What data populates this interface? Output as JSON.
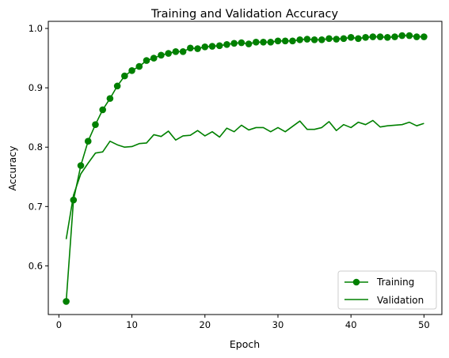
{
  "chart_data": {
    "type": "line",
    "title": "Training and Validation Accuracy",
    "xlabel": "Epoch",
    "ylabel": "Accuracy",
    "xlim": [
      -1.45,
      52.45
    ],
    "ylim": [
      0.518,
      1.012
    ],
    "xticks": [
      0,
      10,
      20,
      30,
      40,
      50
    ],
    "yticks": [
      0.6,
      0.7,
      0.8,
      0.9,
      1.0
    ],
    "grid": false,
    "legend_position": "bottom-right",
    "x": [
      1,
      2,
      3,
      4,
      5,
      6,
      7,
      8,
      9,
      10,
      11,
      12,
      13,
      14,
      15,
      16,
      17,
      18,
      19,
      20,
      21,
      22,
      23,
      24,
      25,
      26,
      27,
      28,
      29,
      30,
      31,
      32,
      33,
      34,
      35,
      36,
      37,
      38,
      39,
      40,
      41,
      42,
      43,
      44,
      45,
      46,
      47,
      48,
      49,
      50
    ],
    "series": [
      {
        "name": "Training",
        "color": "#008000",
        "marker": "circle",
        "values": [
          0.54,
          0.711,
          0.769,
          0.81,
          0.838,
          0.863,
          0.882,
          0.903,
          0.92,
          0.929,
          0.936,
          0.946,
          0.95,
          0.955,
          0.958,
          0.961,
          0.961,
          0.967,
          0.966,
          0.969,
          0.97,
          0.971,
          0.973,
          0.975,
          0.976,
          0.974,
          0.977,
          0.977,
          0.977,
          0.979,
          0.979,
          0.979,
          0.981,
          0.982,
          0.981,
          0.981,
          0.983,
          0.982,
          0.983,
          0.985,
          0.983,
          0.985,
          0.986,
          0.986,
          0.985,
          0.986,
          0.988,
          0.988,
          0.986,
          0.986
        ]
      },
      {
        "name": "Validation",
        "color": "#008000",
        "marker": "none",
        "values": [
          0.645,
          0.719,
          0.755,
          0.773,
          0.79,
          0.792,
          0.81,
          0.804,
          0.8,
          0.801,
          0.806,
          0.807,
          0.821,
          0.818,
          0.827,
          0.812,
          0.819,
          0.82,
          0.828,
          0.819,
          0.826,
          0.817,
          0.832,
          0.826,
          0.837,
          0.829,
          0.833,
          0.833,
          0.826,
          0.833,
          0.826,
          0.835,
          0.844,
          0.83,
          0.83,
          0.833,
          0.843,
          0.828,
          0.838,
          0.833,
          0.842,
          0.838,
          0.845,
          0.834,
          0.836,
          0.837,
          0.838,
          0.842,
          0.836,
          0.84
        ]
      }
    ]
  }
}
